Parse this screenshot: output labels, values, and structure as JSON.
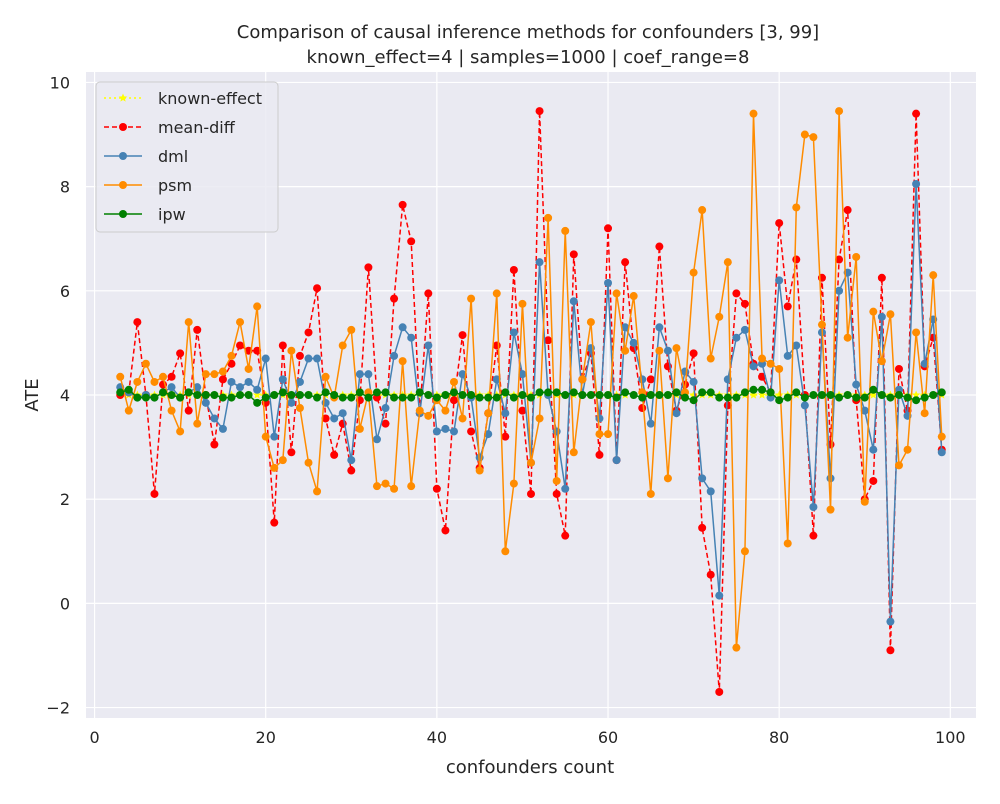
{
  "chart_data": {
    "type": "line",
    "title_line1": "Comparison of causal inference methods for confounders [3, 99]",
    "title_line2": "known_effect=4 | samples=1000 | coef_range=8",
    "xlabel": "confounders count",
    "ylabel": "ATE",
    "xlim": [
      -1,
      103
    ],
    "ylim": [
      -2.2,
      10.2
    ],
    "xticks": [
      0,
      20,
      40,
      60,
      80,
      100
    ],
    "yticks": [
      -2,
      0,
      2,
      4,
      6,
      8,
      10
    ],
    "grid": true,
    "legend_position": "top-left",
    "x": [
      3,
      4,
      5,
      6,
      7,
      8,
      9,
      10,
      11,
      12,
      13,
      14,
      15,
      16,
      17,
      18,
      19,
      20,
      21,
      22,
      23,
      24,
      25,
      26,
      27,
      28,
      29,
      30,
      31,
      32,
      33,
      34,
      35,
      36,
      37,
      38,
      39,
      40,
      41,
      42,
      43,
      44,
      45,
      46,
      47,
      48,
      49,
      50,
      51,
      52,
      53,
      54,
      55,
      56,
      57,
      58,
      59,
      60,
      61,
      62,
      63,
      64,
      65,
      66,
      67,
      68,
      69,
      70,
      71,
      72,
      73,
      74,
      75,
      76,
      77,
      78,
      79,
      80,
      81,
      82,
      83,
      84,
      85,
      86,
      87,
      88,
      89,
      90,
      91,
      92,
      93,
      94,
      95,
      96,
      97,
      98,
      99
    ],
    "series": [
      {
        "name": "known-effect",
        "color": "#ffff00",
        "style": "dotted",
        "marker": "star",
        "values": [
          4,
          4,
          4,
          4,
          4,
          4,
          4,
          4,
          4,
          4,
          4,
          4,
          4,
          4,
          4,
          4,
          4,
          4,
          4,
          4,
          4,
          4,
          4,
          4,
          4,
          4,
          4,
          4,
          4,
          4,
          4,
          4,
          4,
          4,
          4,
          4,
          4,
          4,
          4,
          4,
          4,
          4,
          4,
          4,
          4,
          4,
          4,
          4,
          4,
          4,
          4,
          4,
          4,
          4,
          4,
          4,
          4,
          4,
          4,
          4,
          4,
          4,
          4,
          4,
          4,
          4,
          4,
          4,
          4,
          4,
          4,
          4,
          4,
          4,
          4,
          4,
          4,
          4,
          4,
          4,
          4,
          4,
          4,
          4,
          4,
          4,
          4,
          4,
          4,
          4,
          4,
          4,
          4,
          4,
          4,
          4,
          4
        ]
      },
      {
        "name": "mean-diff",
        "color": "#ff0000",
        "style": "dashed",
        "marker": "circle",
        "values": [
          4.0,
          4.05,
          5.4,
          4.0,
          2.1,
          4.2,
          4.35,
          4.8,
          3.7,
          5.25,
          4.0,
          3.05,
          4.3,
          4.6,
          4.95,
          4.85,
          4.85,
          3.85,
          1.55,
          4.95,
          2.9,
          4.75,
          5.2,
          6.05,
          3.55,
          2.85,
          3.45,
          2.55,
          3.9,
          6.45,
          3.95,
          3.45,
          5.85,
          7.65,
          6.95,
          3.65,
          5.95,
          2.2,
          1.4,
          3.9,
          5.15,
          3.3,
          2.6,
          3.65,
          4.95,
          3.2,
          6.4,
          3.7,
          2.1,
          9.45,
          5.05,
          2.1,
          1.3,
          6.7,
          4.3,
          4.8,
          2.85,
          7.2,
          2.75,
          6.55,
          4.9,
          3.75,
          4.3,
          6.85,
          4.55,
          3.7,
          4.2,
          4.8,
          1.45,
          0.55,
          -1.7,
          3.8,
          5.95,
          5.75,
          4.6,
          4.35,
          4.05,
          7.3,
          5.7,
          6.6,
          4.0,
          1.3,
          6.25,
          3.05,
          6.6,
          7.55,
          3.9,
          2.0,
          2.35,
          6.25,
          -0.9,
          4.5,
          3.7,
          9.4,
          4.55,
          5.1,
          2.95
        ]
      },
      {
        "name": "dml",
        "color": "#4682b4",
        "style": "solid",
        "marker": "circle",
        "values": [
          4.15,
          4.05,
          3.95,
          4.0,
          3.95,
          4.05,
          4.15,
          3.95,
          4.05,
          4.15,
          3.85,
          3.55,
          3.35,
          4.25,
          4.15,
          4.25,
          4.1,
          4.7,
          3.2,
          4.3,
          3.85,
          4.25,
          4.7,
          4.7,
          3.85,
          3.55,
          3.65,
          2.75,
          4.4,
          4.4,
          3.15,
          3.75,
          4.75,
          5.3,
          5.1,
          3.65,
          4.95,
          3.3,
          3.35,
          3.3,
          4.4,
          3.95,
          2.8,
          3.25,
          4.3,
          3.65,
          5.2,
          4.4,
          2.7,
          6.55,
          4.0,
          3.3,
          2.2,
          5.8,
          4.0,
          4.9,
          3.55,
          6.15,
          2.75,
          5.3,
          5.0,
          4.3,
          3.45,
          5.3,
          4.85,
          3.65,
          4.45,
          4.25,
          2.4,
          2.15,
          0.15,
          4.3,
          5.1,
          5.25,
          4.55,
          4.6,
          3.95,
          6.2,
          4.75,
          4.95,
          3.8,
          1.85,
          5.2,
          2.4,
          6.0,
          6.35,
          4.2,
          3.7,
          2.95,
          5.5,
          -0.35,
          4.1,
          3.6,
          8.05,
          4.6,
          5.45,
          2.9
        ]
      },
      {
        "name": "psm",
        "color": "#ff8c00",
        "style": "solid",
        "marker": "circle",
        "values": [
          4.35,
          3.7,
          4.25,
          4.6,
          4.25,
          4.35,
          3.7,
          3.3,
          5.4,
          3.45,
          4.4,
          4.4,
          4.45,
          4.75,
          5.4,
          4.5,
          5.7,
          3.2,
          2.6,
          2.75,
          4.85,
          3.75,
          2.7,
          2.15,
          4.35,
          3.95,
          4.95,
          5.25,
          3.35,
          4.05,
          2.25,
          2.3,
          2.2,
          4.65,
          2.25,
          3.7,
          3.6,
          3.9,
          3.7,
          4.25,
          3.55,
          5.85,
          2.55,
          3.65,
          5.95,
          1.0,
          2.3,
          5.75,
          2.7,
          3.55,
          7.4,
          2.35,
          7.15,
          2.9,
          4.3,
          5.4,
          3.25,
          3.25,
          5.95,
          4.85,
          5.9,
          4.05,
          2.1,
          4.85,
          2.4,
          4.9,
          4.05,
          6.35,
          7.55,
          4.7,
          5.5,
          6.55,
          -0.85,
          1.0,
          9.4,
          4.7,
          4.6,
          4.5,
          1.15,
          7.6,
          9.0,
          8.95,
          5.35,
          1.8,
          9.45,
          5.1,
          6.65,
          1.95,
          5.6,
          4.65,
          5.55,
          2.65,
          2.95,
          5.2,
          3.65,
          6.3,
          3.2
        ]
      },
      {
        "name": "ipw",
        "color": "#008000",
        "style": "solid",
        "marker": "circle",
        "values": [
          4.05,
          4.1,
          3.95,
          3.95,
          3.95,
          4.05,
          4.0,
          3.95,
          4.05,
          4.0,
          4.0,
          4.0,
          3.95,
          3.95,
          4.0,
          4.0,
          3.85,
          3.95,
          4.0,
          4.05,
          4.0,
          4.0,
          4.0,
          3.95,
          4.05,
          4.0,
          3.95,
          3.95,
          4.05,
          3.95,
          4.05,
          4.05,
          3.95,
          3.95,
          3.95,
          4.05,
          4.0,
          3.95,
          4.0,
          4.05,
          4.0,
          4.0,
          3.95,
          3.95,
          3.95,
          4.05,
          3.95,
          4.0,
          3.95,
          4.05,
          4.05,
          4.05,
          4.0,
          4.05,
          4.0,
          4.0,
          4.0,
          4.0,
          3.95,
          4.05,
          4.0,
          3.95,
          4.0,
          4.0,
          4.0,
          4.05,
          3.95,
          3.9,
          4.05,
          4.05,
          3.95,
          3.95,
          3.95,
          4.05,
          4.1,
          4.1,
          4.05,
          3.9,
          3.95,
          4.05,
          3.95,
          4.0,
          4.0,
          4.0,
          3.95,
          4.0,
          3.95,
          3.95,
          4.1,
          4.0,
          3.95,
          4.0,
          3.95,
          3.9,
          3.95,
          4.0,
          4.05
        ]
      }
    ]
  },
  "colors": {
    "plot_background": "#eaeaf2",
    "grid": "#ffffff"
  }
}
